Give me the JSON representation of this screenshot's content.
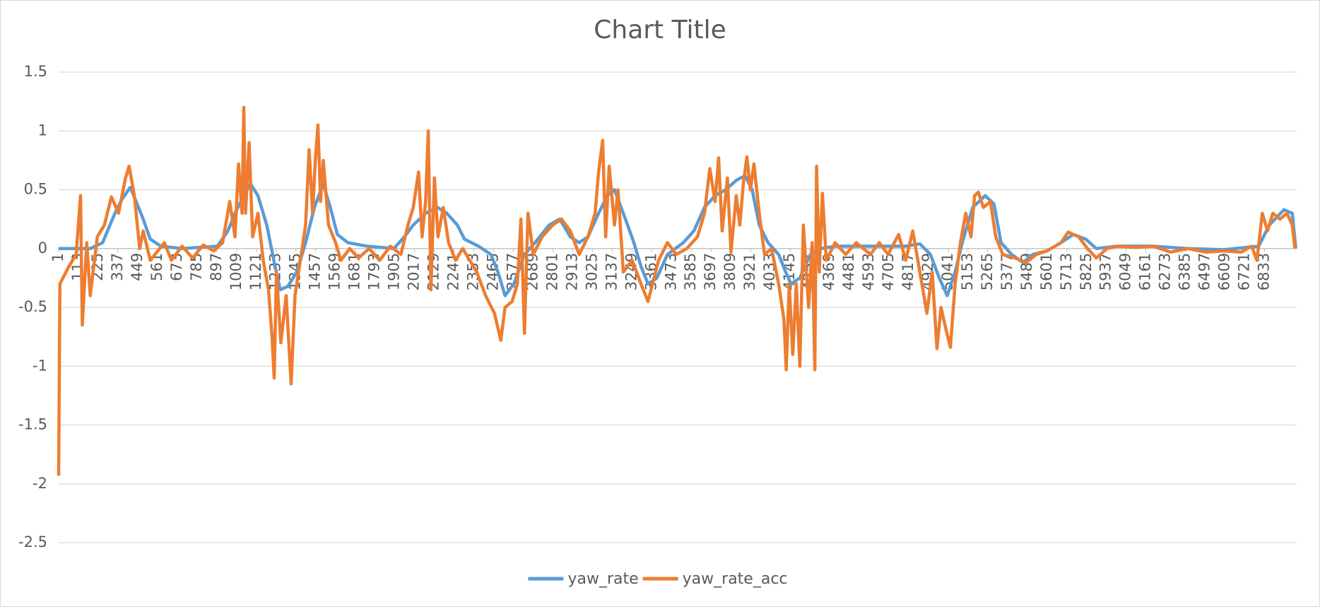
{
  "chart_data": {
    "type": "line",
    "title": "Chart Title",
    "xlim": [
      1,
      7015
    ],
    "xticks": [
      1,
      113,
      225,
      337,
      449,
      561,
      673,
      785,
      897,
      1009,
      1121,
      1233,
      1345,
      1457,
      1569,
      1681,
      1793,
      1905,
      2017,
      2129,
      2241,
      2353,
      2465,
      2577,
      2689,
      2801,
      2913,
      3025,
      3137,
      3249,
      3361,
      3473,
      3585,
      3697,
      3809,
      3921,
      4033,
      4145,
      4257,
      4369,
      4481,
      4593,
      4705,
      4817,
      4929,
      5041,
      5153,
      5265,
      5377,
      5489,
      5601,
      5713,
      5825,
      5937,
      6049,
      6161,
      6273,
      6385,
      6497,
      6609,
      6721,
      6833
    ],
    "ylim": [
      -2.5,
      1.5
    ],
    "yticks": [
      -2.5,
      -2,
      -1.5,
      -1,
      -0.5,
      0,
      0.5,
      1,
      1.5
    ],
    "grid": true,
    "legend": "bottom",
    "series": [
      {
        "name": "yaw_rate",
        "color": "#5b9bd5",
        "x": [
          1,
          100,
          180,
          250,
          320,
          360,
          407,
          440,
          480,
          520,
          580,
          700,
          900,
          960,
          1000,
          1050,
          1088,
          1130,
          1180,
          1220,
          1256,
          1300,
          1350,
          1400,
          1450,
          1500,
          1540,
          1580,
          1640,
          1750,
          1900,
          1960,
          2010,
          2080,
          2148,
          2200,
          2260,
          2300,
          2380,
          2450,
          2490,
          2530,
          2580,
          2640,
          2700,
          2780,
          2840,
          2900,
          2950,
          3000,
          3060,
          3110,
          3150,
          3200,
          3260,
          3300,
          3340,
          3390,
          3450,
          3540,
          3600,
          3660,
          3720,
          3780,
          3840,
          3890,
          3930,
          3970,
          4020,
          4080,
          4120,
          4150,
          4200,
          4260,
          4320,
          4400,
          4600,
          4800,
          4880,
          4940,
          4990,
          5035,
          5080,
          5120,
          5180,
          5250,
          5300,
          5340,
          5400,
          5465,
          5520,
          5600,
          5680,
          5750,
          5820,
          5880,
          6000,
          6200,
          6400,
          6600,
          6800,
          6860,
          6943,
          6990,
          7010
        ],
        "values": [
          0,
          0,
          0,
          0.05,
          0.3,
          0.42,
          0.52,
          0.4,
          0.25,
          0.08,
          0.02,
          0,
          0.02,
          0.15,
          0.3,
          0.45,
          0.55,
          0.45,
          0.2,
          -0.1,
          -0.35,
          -0.32,
          -0.2,
          0.05,
          0.35,
          0.55,
          0.35,
          0.12,
          0.05,
          0.02,
          0,
          0.1,
          0.2,
          0.3,
          0.35,
          0.3,
          0.2,
          0.08,
          0.02,
          -0.05,
          -0.2,
          -0.4,
          -0.3,
          -0.05,
          0.05,
          0.2,
          0.25,
          0.1,
          0.05,
          0.1,
          0.3,
          0.45,
          0.5,
          0.3,
          0.05,
          -0.15,
          -0.3,
          -0.25,
          -0.05,
          0.05,
          0.15,
          0.35,
          0.45,
          0.5,
          0.58,
          0.62,
          0.5,
          0.2,
          0.05,
          -0.05,
          -0.2,
          -0.3,
          -0.25,
          -0.05,
          0,
          0.02,
          0.02,
          0.02,
          0.04,
          -0.05,
          -0.25,
          -0.4,
          -0.2,
          0.05,
          0.35,
          0.45,
          0.38,
          0.05,
          -0.05,
          -0.12,
          -0.05,
          -0.02,
          0.05,
          0.12,
          0.08,
          0,
          0.02,
          0.02,
          0,
          -0.01,
          0.02,
          0.2,
          0.33,
          0.3,
          0
        ]
      },
      {
        "name": "yaw_rate_acc",
        "color": "#ed7d31",
        "x": [
          1,
          8,
          60,
          100,
          125,
          135,
          160,
          180,
          220,
          260,
          300,
          340,
          380,
          400,
          430,
          460,
          480,
          520,
          600,
          640,
          700,
          760,
          820,
          880,
          930,
          970,
          1000,
          1020,
          1040,
          1050,
          1060,
          1080,
          1100,
          1130,
          1160,
          1190,
          1210,
          1222,
          1235,
          1260,
          1290,
          1318,
          1340,
          1370,
          1400,
          1420,
          1440,
          1455,
          1470,
          1485,
          1500,
          1530,
          1570,
          1600,
          1650,
          1700,
          1760,
          1820,
          1880,
          1940,
          1980,
          2010,
          2040,
          2060,
          2080,
          2095,
          2110,
          2130,
          2150,
          2180,
          2210,
          2250,
          2290,
          2330,
          2370,
          2420,
          2470,
          2506,
          2530,
          2570,
          2600,
          2620,
          2640,
          2660,
          2690,
          2740,
          2800,
          2850,
          2900,
          2950,
          3000,
          3040,
          3060,
          3083,
          3100,
          3120,
          3150,
          3170,
          3200,
          3250,
          3300,
          3340,
          3400,
          3450,
          3500,
          3560,
          3620,
          3660,
          3690,
          3720,
          3740,
          3760,
          3790,
          3810,
          3840,
          3860,
          3880,
          3900,
          3920,
          3940,
          3970,
          4000,
          4040,
          4080,
          4110,
          4123,
          4140,
          4160,
          4180,
          4200,
          4220,
          4250,
          4270,
          4285,
          4295,
          4310,
          4328,
          4350,
          4400,
          4460,
          4520,
          4600,
          4650,
          4700,
          4760,
          4800,
          4840,
          4880,
          4920,
          4950,
          4977,
          5000,
          5030,
          5053,
          5080,
          5110,
          5140,
          5170,
          5190,
          5211,
          5240,
          5280,
          5310,
          5350,
          5420,
          5480,
          5540,
          5600,
          5680,
          5720,
          5780,
          5830,
          5880,
          5940,
          6000,
          6100,
          6200,
          6300,
          6400,
          6500,
          6600,
          6700,
          6760,
          6790,
          6820,
          6850,
          6880,
          6920,
          6960,
          6990,
          7005
        ],
        "values": [
          -1.93,
          -0.3,
          -0.15,
          -0.05,
          0.45,
          -0.65,
          0.05,
          -0.4,
          0.1,
          0.2,
          0.44,
          0.3,
          0.6,
          0.7,
          0.45,
          0,
          0.15,
          -0.1,
          0.05,
          -0.1,
          0.02,
          -0.08,
          0.03,
          -0.02,
          0.05,
          0.4,
          0.1,
          0.72,
          0.3,
          1.2,
          0.3,
          0.9,
          0.1,
          0.3,
          -0.1,
          -0.35,
          -0.75,
          -1.1,
          -0.2,
          -0.8,
          -0.4,
          -1.15,
          -0.4,
          -0.1,
          0.2,
          0.84,
          0.3,
          0.75,
          1.05,
          0.4,
          0.75,
          0.2,
          0.05,
          -0.1,
          0,
          -0.08,
          0,
          -0.1,
          0.02,
          -0.05,
          0.2,
          0.35,
          0.65,
          0.1,
          0.4,
          1.0,
          -0.35,
          0.6,
          0.1,
          0.35,
          0.05,
          -0.1,
          0,
          -0.1,
          -0.2,
          -0.4,
          -0.55,
          -0.78,
          -0.5,
          -0.45,
          -0.3,
          0.25,
          -0.72,
          0.3,
          -0.05,
          0.1,
          0.2,
          0.25,
          0.15,
          -0.05,
          0.1,
          0.3,
          0.65,
          0.92,
          0.1,
          0.7,
          0.2,
          0.5,
          -0.2,
          -0.1,
          -0.3,
          -0.45,
          -0.1,
          0.05,
          -0.05,
          0,
          0.1,
          0.3,
          0.68,
          0.4,
          0.77,
          0.15,
          0.6,
          -0.03,
          0.45,
          0.2,
          0.55,
          0.78,
          0.5,
          0.72,
          0.3,
          -0.05,
          0,
          -0.3,
          -0.6,
          -1.03,
          -0.3,
          -0.9,
          -0.3,
          -1.0,
          0.2,
          -0.5,
          0.05,
          -1.03,
          0.7,
          -0.2,
          0.47,
          -0.1,
          0.05,
          -0.05,
          0.05,
          -0.05,
          0.05,
          -0.05,
          0.12,
          -0.1,
          0.15,
          -0.2,
          -0.55,
          -0.2,
          -0.85,
          -0.5,
          -0.7,
          -0.84,
          -0.3,
          0.05,
          0.3,
          0.1,
          0.45,
          0.48,
          0.35,
          0.4,
          0.1,
          -0.05,
          -0.08,
          -0.12,
          -0.05,
          -0.02,
          0.05,
          0.14,
          0.1,
          0,
          -0.08,
          0,
          0.02,
          0.01,
          0.02,
          -0.03,
          0,
          -0.03,
          -0.02,
          -0.03,
          0.02,
          -0.1,
          0.3,
          0.15,
          0.3,
          0.25,
          0.3,
          0.2,
          0
        ]
      }
    ]
  }
}
